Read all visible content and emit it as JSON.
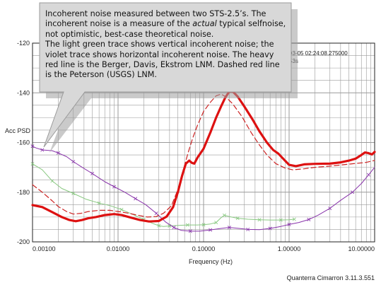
{
  "callout": {
    "line1a": "Incoherent noise measured between two STS-2.5’s. The incoherent noise is a measure of the ",
    "line1em": "actual",
    "line1b": " typical selfnoise, not optimistic, best-case theoretical noise.",
    "line2": "The light green trace shows vertical incoherent noise; the violet trace shows horizontal incoherent noise. The heavy red line is the Berger, Davis, Ekstrom LNM. Dashed red line is the Peterson (USGS) LNM."
  },
  "info_lines": [
    "03-05 02:24:08.275000",
    "53s"
  ],
  "footer": "Quanterra Cimarron 3.11.3.551",
  "colors": {
    "background": "#ffffff",
    "grid": "#9a9a9a",
    "callout_fill": "#d8d8d8",
    "callout_border": "#9a9a9a",
    "berger_lnm": "#dd1111",
    "peterson_lnm": "#cc2222",
    "vertical_incoherent": "#88c880",
    "horizontal_incoherent": "#8833aa"
  },
  "chart_data": {
    "type": "line",
    "xlabel": "Frequency (Hz)",
    "ylabel": "Acc PSD",
    "xscale": "log",
    "xlim": [
      0.001,
      10
    ],
    "ylim": [
      -200,
      -120
    ],
    "x_ticks": [
      0.001,
      0.01,
      0.1,
      1,
      10
    ],
    "x_tick_labels": [
      "0.00100",
      "0.01000",
      "0.10000",
      "1.00000",
      "10.00000"
    ],
    "y_ticks": [
      -200,
      -180,
      -160,
      -140,
      -120
    ],
    "y_tick_labels": [
      "-200",
      "-180",
      "-160",
      "-140",
      "-120"
    ],
    "grid": true,
    "series": [
      {
        "key": "berger",
        "style": "heavy-solid",
        "points": [
          [
            0.001,
            -185.2
          ],
          [
            0.0013,
            -186
          ],
          [
            0.0017,
            -188
          ],
          [
            0.0022,
            -190
          ],
          [
            0.0027,
            -191.2
          ],
          [
            0.0032,
            -191.7
          ],
          [
            0.0038,
            -191.2
          ],
          [
            0.0045,
            -190.5
          ],
          [
            0.0055,
            -190
          ],
          [
            0.007,
            -189.2
          ],
          [
            0.009,
            -188.8
          ],
          [
            0.011,
            -189.2
          ],
          [
            0.014,
            -190.2
          ],
          [
            0.018,
            -191.2
          ],
          [
            0.023,
            -191.8
          ],
          [
            0.03,
            -191.6
          ],
          [
            0.037,
            -189.8
          ],
          [
            0.044,
            -186
          ],
          [
            0.05,
            -180
          ],
          [
            0.056,
            -173.5
          ],
          [
            0.062,
            -168.5
          ],
          [
            0.068,
            -167.3
          ],
          [
            0.073,
            -168.2
          ],
          [
            0.078,
            -168.5
          ],
          [
            0.085,
            -166
          ],
          [
            0.1,
            -162.5
          ],
          [
            0.12,
            -156
          ],
          [
            0.14,
            -150
          ],
          [
            0.16,
            -145.5
          ],
          [
            0.18,
            -141.8
          ],
          [
            0.2,
            -139.5
          ],
          [
            0.22,
            -139.5
          ],
          [
            0.25,
            -141.5
          ],
          [
            0.3,
            -145.5
          ],
          [
            0.37,
            -150.5
          ],
          [
            0.45,
            -155.5
          ],
          [
            0.55,
            -160
          ],
          [
            0.65,
            -163
          ],
          [
            0.75,
            -164.5
          ],
          [
            0.85,
            -166.5
          ],
          [
            1,
            -169
          ],
          [
            1.2,
            -169.5
          ],
          [
            1.5,
            -168.8
          ],
          [
            2,
            -168.6
          ],
          [
            3,
            -168.5
          ],
          [
            4,
            -168
          ],
          [
            5,
            -167.3
          ],
          [
            6,
            -166.5
          ],
          [
            7,
            -165
          ],
          [
            7.7,
            -164
          ],
          [
            8.5,
            -164.3
          ],
          [
            9.3,
            -164.8
          ],
          [
            10,
            -163.8
          ]
        ]
      },
      {
        "key": "peterson",
        "style": "dashed",
        "points": [
          [
            0.001,
            -177
          ],
          [
            0.0013,
            -180
          ],
          [
            0.0017,
            -183.5
          ],
          [
            0.002,
            -185.8
          ],
          [
            0.0025,
            -187.8
          ],
          [
            0.003,
            -188.8
          ],
          [
            0.0037,
            -188.5
          ],
          [
            0.0045,
            -187.8
          ],
          [
            0.006,
            -187.3
          ],
          [
            0.008,
            -187.3
          ],
          [
            0.01,
            -187.8
          ],
          [
            0.013,
            -188.4
          ],
          [
            0.017,
            -189.3
          ],
          [
            0.022,
            -190
          ],
          [
            0.028,
            -189.8
          ],
          [
            0.034,
            -188.5
          ],
          [
            0.042,
            -185.5
          ],
          [
            0.05,
            -179
          ],
          [
            0.058,
            -171
          ],
          [
            0.066,
            -164
          ],
          [
            0.075,
            -158
          ],
          [
            0.085,
            -153
          ],
          [
            0.1,
            -147.5
          ],
          [
            0.12,
            -143.8
          ],
          [
            0.14,
            -141.2
          ],
          [
            0.16,
            -140.5
          ],
          [
            0.18,
            -141.5
          ],
          [
            0.22,
            -144.5
          ],
          [
            0.28,
            -149.5
          ],
          [
            0.36,
            -156
          ],
          [
            0.45,
            -161
          ],
          [
            0.55,
            -165
          ],
          [
            0.7,
            -168.5
          ],
          [
            0.9,
            -170.3
          ],
          [
            1.1,
            -171
          ],
          [
            1.5,
            -170.6
          ],
          [
            2,
            -170
          ],
          [
            3,
            -169.5
          ],
          [
            5,
            -168.7
          ],
          [
            8,
            -168
          ],
          [
            10,
            -167.2
          ]
        ]
      },
      {
        "key": "vertical",
        "style": "thin-with-markers",
        "points": [
          [
            0.001,
            -168.6
          ],
          [
            0.0013,
            -171
          ],
          [
            0.0017,
            -175.5
          ],
          [
            0.0022,
            -178.5
          ],
          [
            0.003,
            -180.5
          ],
          [
            0.0042,
            -182.8
          ],
          [
            0.006,
            -184.4
          ],
          [
            0.008,
            -185.4
          ],
          [
            0.011,
            -187
          ],
          [
            0.015,
            -189
          ],
          [
            0.02,
            -191
          ],
          [
            0.026,
            -192.7
          ],
          [
            0.03,
            -193.5
          ],
          [
            0.034,
            -193.8
          ],
          [
            0.04,
            -193.6
          ],
          [
            0.05,
            -193.4
          ],
          [
            0.065,
            -193.2
          ],
          [
            0.085,
            -193.2
          ],
          [
            0.1,
            -193.1
          ],
          [
            0.12,
            -192.8
          ],
          [
            0.14,
            -192.2
          ],
          [
            0.16,
            -190.3
          ],
          [
            0.175,
            -189.3
          ],
          [
            0.2,
            -189.8
          ],
          [
            0.25,
            -190.5
          ],
          [
            0.33,
            -190.9
          ],
          [
            0.45,
            -191.1
          ],
          [
            0.6,
            -191.2
          ],
          [
            0.8,
            -191.2
          ],
          [
            1,
            -191.1
          ],
          [
            1.15,
            -190.9
          ]
        ]
      },
      {
        "key": "horizontal",
        "style": "thin-with-markers",
        "points": [
          [
            0.001,
            -161.5
          ],
          [
            0.0011,
            -162.2
          ],
          [
            0.0013,
            -163
          ],
          [
            0.0017,
            -163.3
          ],
          [
            0.002,
            -164.2
          ],
          [
            0.0025,
            -165.7
          ],
          [
            0.003,
            -167.7
          ],
          [
            0.0038,
            -170
          ],
          [
            0.005,
            -172.5
          ],
          [
            0.007,
            -175.8
          ],
          [
            0.009,
            -177.8
          ],
          [
            0.012,
            -180
          ],
          [
            0.016,
            -182.6
          ],
          [
            0.021,
            -185
          ],
          [
            0.028,
            -188.5
          ],
          [
            0.036,
            -192
          ],
          [
            0.045,
            -194.2
          ],
          [
            0.055,
            -195.4
          ],
          [
            0.07,
            -195.7
          ],
          [
            0.09,
            -195.7
          ],
          [
            0.12,
            -195.2
          ],
          [
            0.16,
            -194.6
          ],
          [
            0.2,
            -194.2
          ],
          [
            0.26,
            -194.6
          ],
          [
            0.33,
            -195
          ],
          [
            0.45,
            -195.1
          ],
          [
            0.6,
            -194.6
          ],
          [
            0.8,
            -193.8
          ],
          [
            1,
            -193
          ],
          [
            1.3,
            -192.2
          ],
          [
            1.7,
            -191
          ],
          [
            2.2,
            -189.2
          ],
          [
            3,
            -186.5
          ],
          [
            4,
            -183.3
          ],
          [
            5.5,
            -180
          ],
          [
            7,
            -176.5
          ],
          [
            8.5,
            -173
          ],
          [
            10,
            -170
          ]
        ]
      }
    ]
  }
}
